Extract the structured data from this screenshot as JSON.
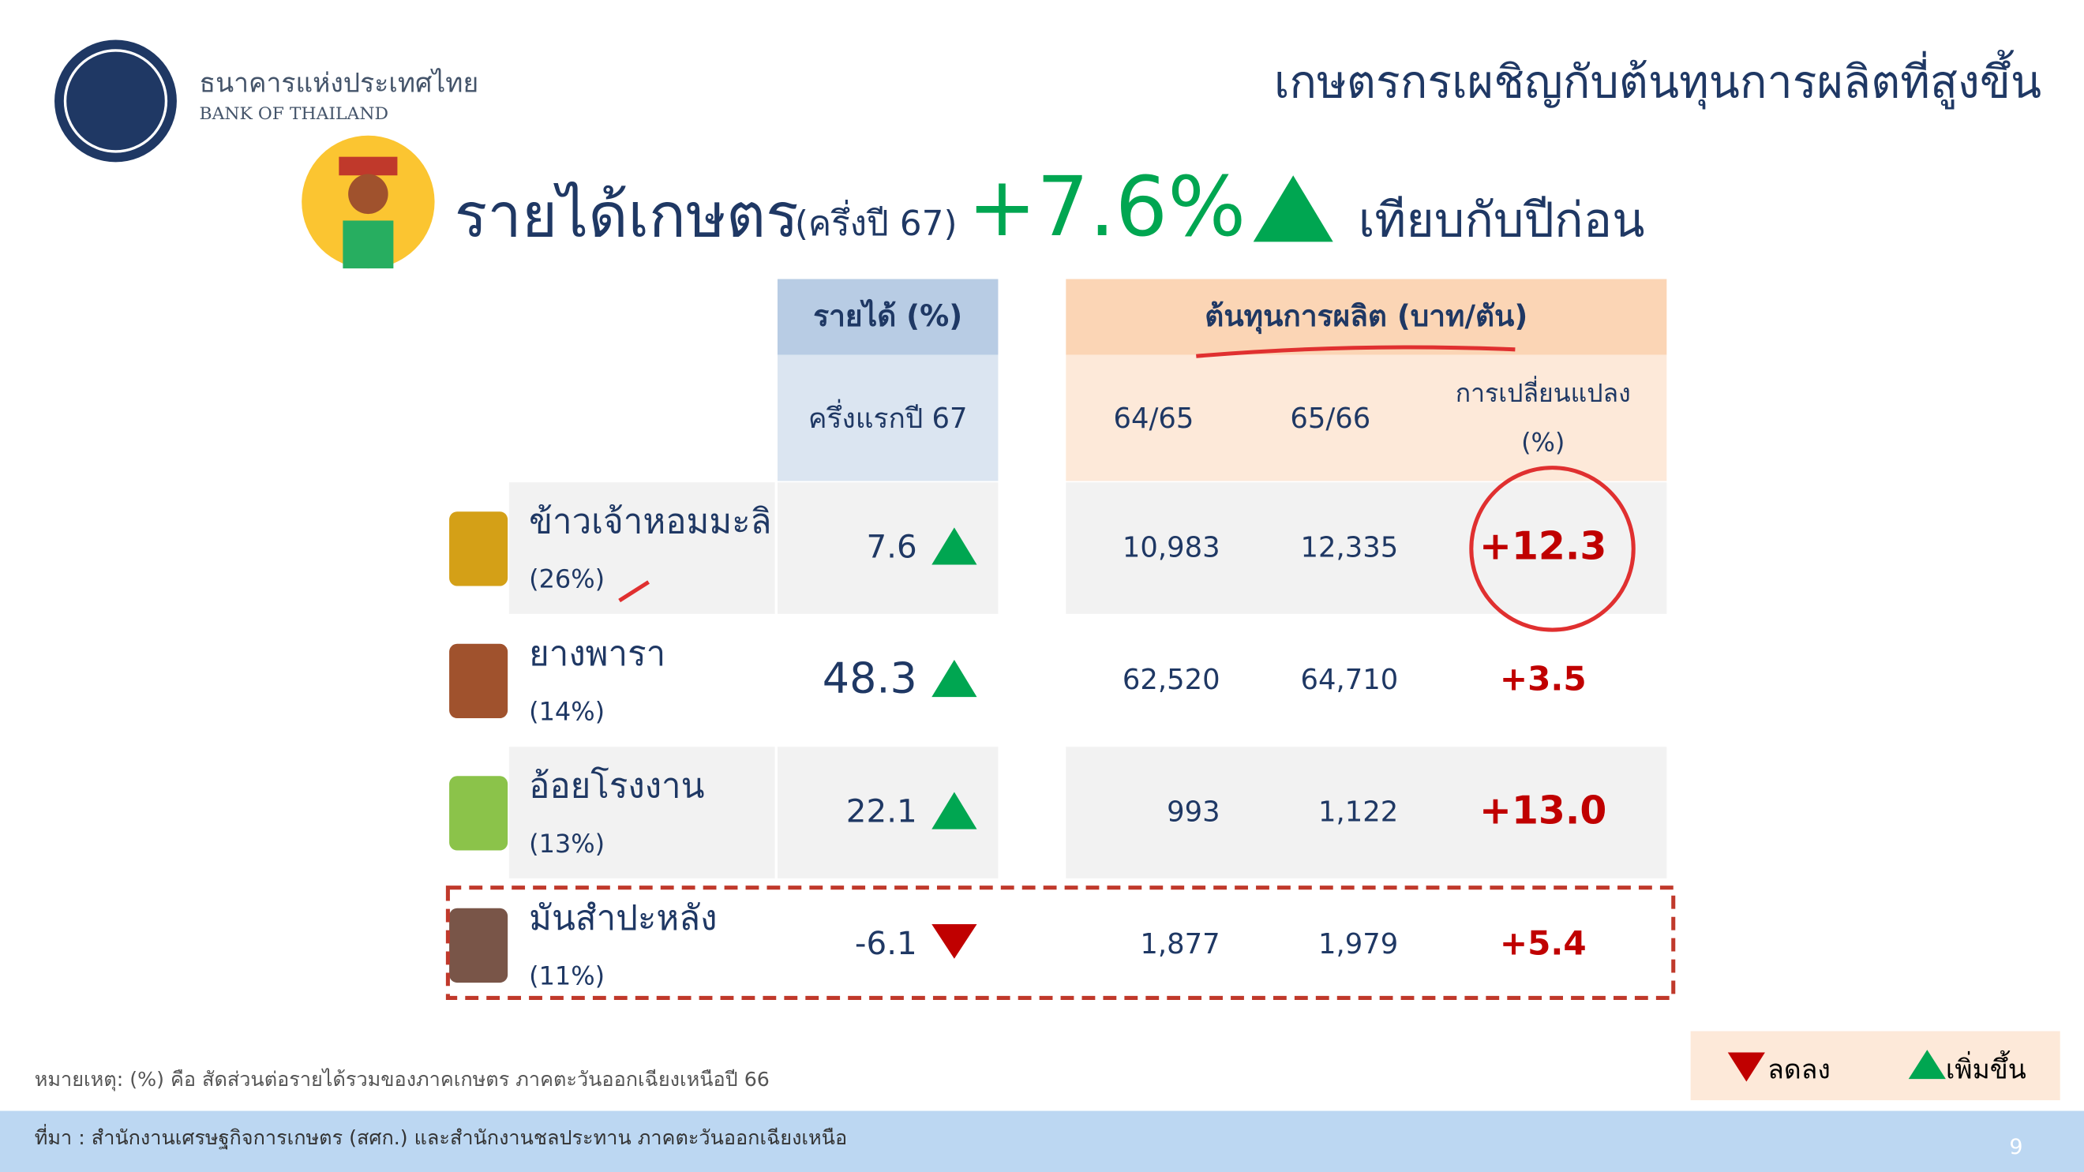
{
  "logo": {
    "thai": "ธนาคารแห่งประเทศไทย",
    "english": "BANK OF THAILAND"
  },
  "slide_title": "เกษตรกรเผชิญกับต้นทุนการผลิตที่สูงขึ้น",
  "headline": {
    "label": "รายได้เกษตร",
    "period": "(ครึ่งปี 67)",
    "change": "+7.6%",
    "comparison": "เทียบกับปีก่อน"
  },
  "table": {
    "income_header": "รายได้ (%)",
    "income_subheader": "ครึ่งแรกปี 67",
    "cost_header": "ต้นทุนการผลิต (บาท/ตัน)",
    "cost_columns": [
      "64/65",
      "65/66"
    ],
    "change_header": [
      "การเปลี่ยนแปลง",
      "(%)"
    ],
    "rows": [
      {
        "crop": "ข้าวเจ้าหอมมะลิ",
        "share": "(26%)",
        "income": "7.6",
        "direction": "up",
        "cost_a": "10,983",
        "cost_b": "12,335",
        "change": "+12.3"
      },
      {
        "crop": "ยางพารา",
        "share": "(14%)",
        "income": "48.3",
        "direction": "up",
        "cost_a": "62,520",
        "cost_b": "64,710",
        "change": "+3.5"
      },
      {
        "crop": "อ้อยโรงงาน",
        "share": "(13%)",
        "income": "22.1",
        "direction": "up",
        "cost_a": "993",
        "cost_b": "1,122",
        "change": "+13.0"
      },
      {
        "crop": "มันสำปะหลัง",
        "share": "(11%)",
        "income": "-6.1",
        "direction": "down",
        "cost_a": "1,877",
        "cost_b": "1,979",
        "change": "+5.4"
      }
    ]
  },
  "legend": {
    "down": "ลดลง",
    "up": "เพิ่มขึ้น"
  },
  "note": "หมายเหตุ: (%) คือ สัดส่วนต่อรายได้รวมของภาคเกษตร ภาคตะวันออกเฉียงเหนือปี 66",
  "source": "ที่มา : สำนักงานเศรษฐกิจการเกษตร (สศก.) และสำนักงานชลประทาน ภาคตะวันออกเฉียงเหนือ",
  "page_number": "9"
}
